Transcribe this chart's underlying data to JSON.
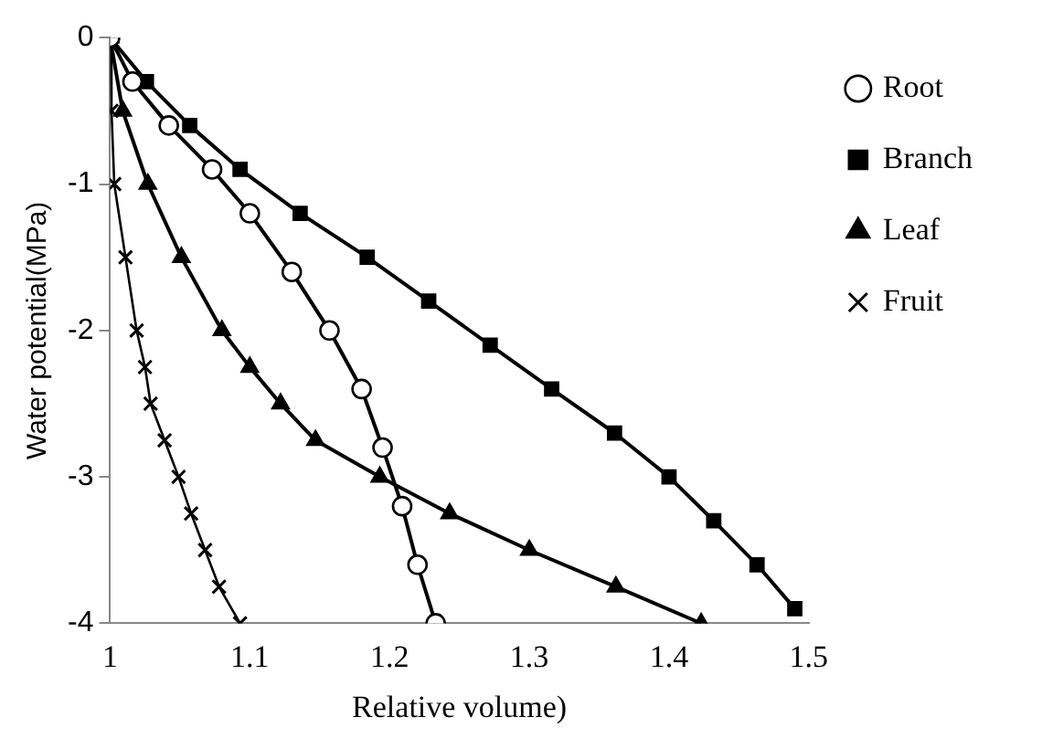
{
  "chart_data": {
    "type": "line",
    "xlabel": "Relative volume)",
    "ylabel": "Water potential(MPa)",
    "xlim": [
      1,
      1.5
    ],
    "xticks": [
      1,
      1.1,
      1.2,
      1.3,
      1.4,
      1.5
    ],
    "ylim": [
      -4,
      0
    ],
    "yticks": [
      -4,
      -3,
      -2,
      -1,
      0
    ],
    "grid": false,
    "legend": "top right",
    "series": [
      {
        "name": "Root",
        "color": "#000000",
        "marker": "circle",
        "x": [
          1,
          1.016,
          1.042,
          1.073,
          1.1,
          1.13,
          1.157,
          1.18,
          1.195,
          1.209,
          1.22,
          1.233
        ],
        "values": [
          0,
          -0.3,
          -0.6,
          -0.9,
          -1.2,
          -1.6,
          -2.0,
          -2.4,
          -2.8,
          -3.2,
          -3.6,
          -4.0
        ]
      },
      {
        "name": "Branch",
        "color": "#000000",
        "marker": "square",
        "x": [
          1,
          1.026,
          1.057,
          1.093,
          1.136,
          1.184,
          1.228,
          1.272,
          1.316,
          1.361,
          1.4,
          1.432,
          1.463,
          1.49
        ],
        "values": [
          0,
          -0.3,
          -0.6,
          -0.9,
          -1.2,
          -1.5,
          -1.8,
          -2.1,
          -2.4,
          -2.7,
          -3.0,
          -3.3,
          -3.6,
          -3.9
        ]
      },
      {
        "name": "Leaf",
        "color": "#000000",
        "marker": "triangle",
        "x": [
          1,
          1.009,
          1.027,
          1.051,
          1.08,
          1.1,
          1.122,
          1.147,
          1.193,
          1.243,
          1.3,
          1.362,
          1.423
        ],
        "values": [
          0,
          -0.5,
          -1.0,
          -1.5,
          -2.0,
          -2.25,
          -2.5,
          -2.75,
          -3.0,
          -3.25,
          -3.5,
          -3.75,
          -4.0
        ]
      },
      {
        "name": "Fruit",
        "color": "#000000",
        "marker": "cross",
        "x": [
          1,
          1.001,
          1.003,
          1.011,
          1.019,
          1.025,
          1.029,
          1.039,
          1.049,
          1.058,
          1.068,
          1.078,
          1.093
        ],
        "values": [
          0,
          -0.5,
          -1.0,
          -1.5,
          -2.0,
          -2.25,
          -2.5,
          -2.75,
          -3.0,
          -3.25,
          -3.5,
          -3.75,
          -4.0
        ]
      }
    ]
  }
}
